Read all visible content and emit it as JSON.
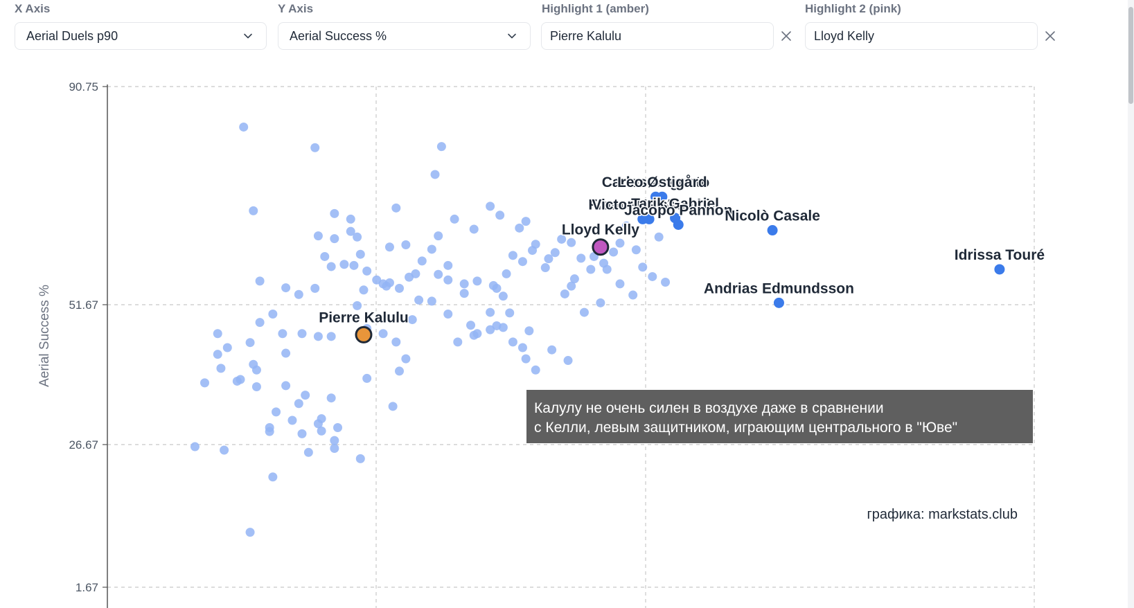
{
  "controls": {
    "x_axis": {
      "label": "X Axis",
      "value": "Aerial Duels p90",
      "icon": "chevron-down-icon"
    },
    "y_axis": {
      "label": "Y Axis",
      "value": "Aerial Success %",
      "icon": "chevron-down-icon"
    },
    "highlight1": {
      "label": "Highlight 1 (amber)",
      "value": "Pierre Kalulu",
      "icon": "close-icon"
    },
    "highlight2": {
      "label": "Highlight 2 (pink)",
      "value": "Lloyd Kelly",
      "icon": "close-icon"
    }
  },
  "colors": {
    "background_point": "#93b4f5",
    "labeled_point": "#3b7bea",
    "highlight1": "#e8953a",
    "highlight2": "#c058c0",
    "annotation_bg": "#5f5f5f",
    "grid": "#c8c8c8",
    "axis": "#555555"
  },
  "chart_data": {
    "type": "scatter",
    "xlabel": "",
    "ylabel": "Aerial Success %",
    "ylim": [
      1.67,
      90.75
    ],
    "y_ticks": [
      "90.75",
      "51.67",
      "26.67",
      "1.67"
    ],
    "grid": true,
    "annotation": "Калулу не очень силен в воздухе даже в сравнении\nс Келли, левым защитником, играющим центрального в \"Юве\"",
    "credit": "графика: markstats.club",
    "highlight1": {
      "name": "Pierre Kalulu",
      "x": 2.29,
      "y": 46.3
    },
    "highlight2": {
      "name": "Lloyd Kelly",
      "x": 3.02,
      "y": 62.0
    },
    "labeled_points": [
      {
        "name": "Carlos Augusto",
        "x": 3.19,
        "y": 71.0
      },
      {
        "name": "Leo Østigård",
        "x": 3.21,
        "y": 71.0
      },
      {
        "name": "Francesco Acerbi",
        "x": 3.17,
        "y": 67.0
      },
      {
        "name": "Victor Nelsson",
        "x": 3.15,
        "y": 67.0
      },
      {
        "name": "Tarik Gabriel",
        "x": 3.25,
        "y": 67.2
      },
      {
        "name": "Jacopo Pannon",
        "x": 3.26,
        "y": 66.0
      },
      {
        "name": "Nicolò Casale",
        "x": 3.55,
        "y": 65.0
      },
      {
        "name": "Andrias Edmundsson",
        "x": 3.57,
        "y": 52.0
      },
      {
        "name": "Idrissa Touré",
        "x": 4.25,
        "y": 58.0
      }
    ],
    "points": [
      [
        1.92,
        83.5
      ],
      [
        2.14,
        79.8
      ],
      [
        2.25,
        67.0
      ],
      [
        2.53,
        80.0
      ],
      [
        2.51,
        75.0
      ],
      [
        2.39,
        69.0
      ],
      [
        2.2,
        68.0
      ],
      [
        1.95,
        68.5
      ],
      [
        2.2,
        63.5
      ],
      [
        2.15,
        64.0
      ],
      [
        2.17,
        60.3
      ],
      [
        2.26,
        58.7
      ],
      [
        2.37,
        62.0
      ],
      [
        2.42,
        62.4
      ],
      [
        2.23,
        58.9
      ],
      [
        2.19,
        58.5
      ],
      [
        2.14,
        54.6
      ],
      [
        2.09,
        53.5
      ],
      [
        2.29,
        54.3
      ],
      [
        2.36,
        55.0
      ],
      [
        1.97,
        55.9
      ],
      [
        2.05,
        54.7
      ],
      [
        2.01,
        50.0
      ],
      [
        2.04,
        46.5
      ],
      [
        2.05,
        43.0
      ],
      [
        2.1,
        46.5
      ],
      [
        2.15,
        46.0
      ],
      [
        2.19,
        46.0
      ],
      [
        2.27,
        51.5
      ],
      [
        2.3,
        47.4
      ],
      [
        2.35,
        46.5
      ],
      [
        2.39,
        45.0
      ],
      [
        2.42,
        42.0
      ],
      [
        2.44,
        49.0
      ],
      [
        2.46,
        52.5
      ],
      [
        2.55,
        50.0
      ],
      [
        2.58,
        45.0
      ],
      [
        2.63,
        46.2
      ],
      [
        2.72,
        47.6
      ],
      [
        2.75,
        45.0
      ],
      [
        2.78,
        44.0
      ],
      [
        2.79,
        42.0
      ],
      [
        2.82,
        40.0
      ],
      [
        2.87,
        43.6
      ],
      [
        2.92,
        41.7
      ],
      [
        2.62,
        48.0
      ],
      [
        2.68,
        50.3
      ],
      [
        2.7,
        54.6
      ],
      [
        2.73,
        57.2
      ],
      [
        2.75,
        60.5
      ],
      [
        2.78,
        59.4
      ],
      [
        2.82,
        62.5
      ],
      [
        2.85,
        58.3
      ],
      [
        2.88,
        61.0
      ],
      [
        2.9,
        63.4
      ],
      [
        2.93,
        62.8
      ],
      [
        2.96,
        60.0
      ],
      [
        2.99,
        58.0
      ],
      [
        3.0,
        60.3
      ],
      [
        3.03,
        59.1
      ],
      [
        3.06,
        61.1
      ],
      [
        3.08,
        62.7
      ],
      [
        3.1,
        65.8
      ],
      [
        3.13,
        61.5
      ],
      [
        2.86,
        59.9
      ],
      [
        2.81,
        61.4
      ],
      [
        2.79,
        66.6
      ],
      [
        2.77,
        65.4
      ],
      [
        2.71,
        67.7
      ],
      [
        2.68,
        69.3
      ],
      [
        2.63,
        65.2
      ],
      [
        2.57,
        67.0
      ],
      [
        2.52,
        64.0
      ],
      [
        2.5,
        61.6
      ],
      [
        2.47,
        59.5
      ],
      [
        2.45,
        57.2
      ],
      [
        2.43,
        56.6
      ],
      [
        2.4,
        54.6
      ],
      [
        2.37,
        55.6
      ],
      [
        2.33,
        56.1
      ],
      [
        2.3,
        57.7
      ],
      [
        2.28,
        60.7
      ],
      [
        2.27,
        63.8
      ],
      [
        2.25,
        64.8
      ],
      [
        2.35,
        55.4
      ],
      [
        2.6,
        55.4
      ],
      [
        2.55,
        56.1
      ],
      [
        2.52,
        57.1
      ],
      [
        2.55,
        58.7
      ],
      [
        2.5,
        52.3
      ],
      [
        2.6,
        53.7
      ],
      [
        2.64,
        55.9
      ],
      [
        2.69,
        55.1
      ],
      [
        2.72,
        53.2
      ],
      [
        2.74,
        50.2
      ],
      [
        2.7,
        47.9
      ],
      [
        2.68,
        47.2
      ],
      [
        2.64,
        46.5
      ],
      [
        2.8,
        47.0
      ],
      [
        2.97,
        50.3
      ],
      [
        3.02,
        52.0
      ],
      [
        3.12,
        53.4
      ],
      [
        3.18,
        56.7
      ],
      [
        3.15,
        58.4
      ],
      [
        3.2,
        63.8
      ],
      [
        3.22,
        55.7
      ],
      [
        3.08,
        55.4
      ],
      [
        3.04,
        58.0
      ],
      [
        2.94,
        56.3
      ],
      [
        2.93,
        55.0
      ],
      [
        2.91,
        53.6
      ],
      [
        2.4,
        39.8
      ],
      [
        2.3,
        38.5
      ],
      [
        2.19,
        35.0
      ],
      [
        2.11,
        35.5
      ],
      [
        2.09,
        34.0
      ],
      [
        2.05,
        37.2
      ],
      [
        2.02,
        32.5
      ],
      [
        2.07,
        31.0
      ],
      [
        2.15,
        30.4
      ],
      [
        2.16,
        29.1
      ],
      [
        2.16,
        31.3
      ],
      [
        2.21,
        29.7
      ],
      [
        2.1,
        28.6
      ],
      [
        2.2,
        26.0
      ],
      [
        2.12,
        25.3
      ],
      [
        2.2,
        27.4
      ],
      [
        2.28,
        24.2
      ],
      [
        2.38,
        33.5
      ],
      [
        2.0,
        29.7
      ],
      [
        1.95,
        41.0
      ],
      [
        1.96,
        40.0
      ],
      [
        1.96,
        37.0
      ],
      [
        1.9,
        38.0
      ],
      [
        1.84,
        42.8
      ],
      [
        1.8,
        37.7
      ],
      [
        1.77,
        26.3
      ],
      [
        1.86,
        25.7
      ],
      [
        2.0,
        29.0
      ],
      [
        2.01,
        21.0
      ],
      [
        1.94,
        11.3
      ],
      [
        1.91,
        38.3
      ],
      [
        1.85,
        40.3
      ],
      [
        1.87,
        44.0
      ],
      [
        1.84,
        46.5
      ],
      [
        1.94,
        44.9
      ],
      [
        1.97,
        48.5
      ]
    ]
  }
}
